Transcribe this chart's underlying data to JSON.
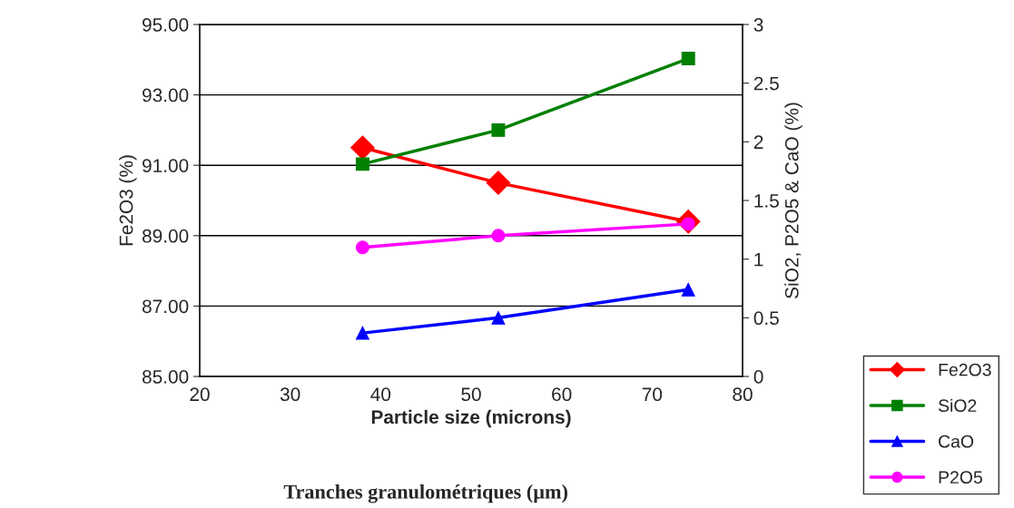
{
  "chart_data": {
    "type": "line",
    "xlabel": "Particle size (microns)",
    "ylabel": "Fe2O3 (%)",
    "y2label": "SiO2, P2O5 & CaO (%)",
    "x": [
      38,
      53,
      74
    ],
    "series": [
      {
        "name": "Fe2O3",
        "color": "#ff0000",
        "marker": "diamond",
        "values": [
          91.5,
          90.5,
          89.4
        ]
      },
      {
        "name": "SiO2",
        "color": "#008000",
        "marker": "square",
        "axis": "y2",
        "values": [
          1.81,
          2.1,
          2.71
        ]
      },
      {
        "name": "CaO",
        "color": "#0000ff",
        "marker": "triangle",
        "axis": "y2",
        "values": [
          0.37,
          0.5,
          0.74
        ]
      },
      {
        "name": "P2O5",
        "color": "#ff00ff",
        "marker": "circle",
        "axis": "y2",
        "values": [
          1.1,
          1.2,
          1.3
        ]
      }
    ],
    "xlim": [
      20,
      80
    ],
    "xticks": [
      20,
      30,
      40,
      50,
      60,
      70,
      80
    ],
    "ylim": [
      85,
      95
    ],
    "yticks": [
      {
        "value": 85,
        "label": "85.00"
      },
      {
        "value": 87,
        "label": "87.00"
      },
      {
        "value": 89,
        "label": "89.00"
      },
      {
        "value": 91,
        "label": "91.00"
      },
      {
        "value": 93,
        "label": "93.00"
      },
      {
        "value": 95,
        "label": "95.00"
      }
    ],
    "y2lim": [
      0,
      3
    ],
    "y2ticks": [
      0,
      0.5,
      1,
      1.5,
      2,
      2.5,
      3
    ],
    "grid": "y",
    "legend": "bottom right",
    "line_style": "solid",
    "annotations": [
      "Tranches granulométriques (µm)"
    ]
  }
}
